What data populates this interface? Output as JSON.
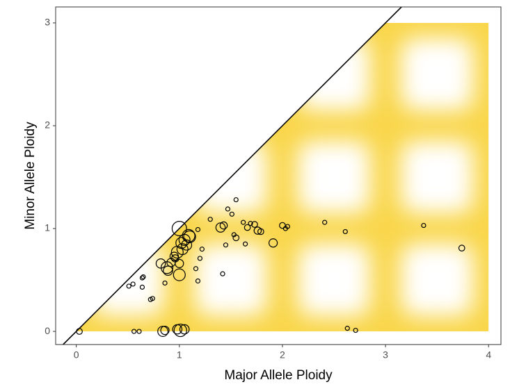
{
  "chart_data": {
    "type": "scatter",
    "x_label": "Major Allele Ploidy",
    "y_label": "Minor Allele Ploidy",
    "xlim": [
      -0.2,
      4.12
    ],
    "ylim": [
      -0.128,
      3.155
    ],
    "xticks": [
      0,
      1,
      2,
      3,
      4
    ],
    "yticks": [
      0,
      1,
      2,
      3
    ],
    "color": "#000000",
    "x": [
      0.03,
      0.51,
      0.55,
      0.64,
      0.65,
      0.64,
      0.72,
      0.74,
      0.86,
      0.82,
      0.88,
      0.92,
      0.89,
      0.96,
      1.0,
      1.0,
      1.05,
      1.09,
      1.03,
      1.07,
      1.18,
      1.22,
      1.2,
      1.16,
      1.18,
      1.0,
      1.3,
      1.4,
      1.43,
      1.45,
      1.42,
      1.47,
      1.55,
      1.51,
      1.53,
      1.55,
      1.62,
      1.64,
      1.66,
      1.69,
      1.73,
      1.76,
      1.79,
      1.91,
      2.0,
      2.03,
      2.05,
      2.41,
      2.61,
      2.63,
      2.71,
      3.37,
      3.74,
      0.84,
      0.86,
      1.01,
      0.98,
      1.05,
      0.56,
      0.61,
      0.98,
      1.02,
      1.1,
      0.95
    ],
    "y": [
      0,
      0.44,
      0.46,
      0.52,
      0.53,
      0.43,
      0.31,
      0.32,
      0.47,
      0.66,
      0.62,
      0.67,
      0.59,
      0.71,
      0.55,
      1.0,
      0.89,
      0.93,
      0.8,
      0.84,
      0.99,
      0.8,
      0.71,
      0.61,
      0.49,
      0.66,
      1.09,
      1.01,
      1.03,
      0.84,
      0.56,
      1.19,
      1.28,
      1.14,
      0.94,
      0.91,
      1.06,
      0.85,
      1.01,
      1.05,
      1.04,
      0.98,
      0.97,
      0.86,
      1.03,
      1.0,
      1.02,
      1.06,
      0.97,
      0.03,
      0.01,
      1.03,
      0.81,
      0,
      0.01,
      0.01,
      0.02,
      0.02,
      0,
      0,
      0.77,
      0.86,
      0.92,
      0.73
    ],
    "sizes": [
      2,
      1,
      1,
      1,
      1,
      1,
      1,
      1,
      1,
      5,
      8,
      4,
      5,
      3,
      8,
      12,
      7,
      9,
      7,
      6,
      1,
      1,
      1,
      1,
      1,
      4,
      1,
      5,
      3,
      1,
      1,
      1,
      1,
      1,
      1,
      2,
      1,
      1,
      2,
      1,
      2,
      3,
      2,
      4,
      2,
      1,
      1,
      1,
      1,
      1,
      1,
      1,
      2,
      6,
      4,
      9,
      5,
      5,
      1,
      1,
      8,
      7,
      8,
      4
    ]
  }
}
